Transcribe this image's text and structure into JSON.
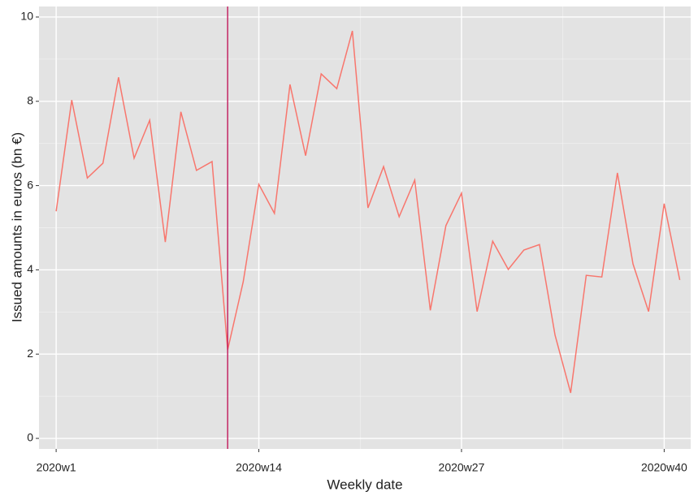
{
  "chart_data": {
    "type": "line",
    "x_label": "Weekly date",
    "y_label": "Issued amounts in euros (bn €)",
    "x": [
      1,
      2,
      3,
      4,
      5,
      6,
      7,
      8,
      9,
      10,
      11,
      12,
      13,
      14,
      15,
      16,
      17,
      18,
      19,
      20,
      21,
      22,
      23,
      24,
      25,
      26,
      27,
      28,
      29,
      30,
      31,
      32,
      33,
      34,
      35,
      36,
      37,
      38,
      39,
      40,
      41
    ],
    "values": [
      5.39,
      8.03,
      6.18,
      6.53,
      8.57,
      6.65,
      7.55,
      4.66,
      7.75,
      6.36,
      6.57,
      2.1,
      3.72,
      6.03,
      5.34,
      8.4,
      6.71,
      8.65,
      8.3,
      9.67,
      5.47,
      6.45,
      5.26,
      6.13,
      3.04,
      5.05,
      5.82,
      3.01,
      4.68,
      4.01,
      4.47,
      4.6,
      2.45,
      1.08,
      3.87,
      3.83,
      6.3,
      4.14,
      3.01,
      5.57,
      3.76
    ],
    "color": "#f8766d",
    "vline": 12,
    "vline_color": "#c2185b",
    "xlim": [
      -0.1,
      41.7
    ],
    "ylim": [
      -0.25,
      10.25
    ],
    "xticks": [
      {
        "value": 1,
        "label": "2020w1"
      },
      {
        "value": 14,
        "label": "2020w14"
      },
      {
        "value": 27,
        "label": "2020w27"
      },
      {
        "value": 40,
        "label": "2020w40"
      }
    ],
    "yticks": [
      0,
      2,
      4,
      6,
      8,
      10
    ],
    "grid": true,
    "background": "#e3e3e3"
  }
}
